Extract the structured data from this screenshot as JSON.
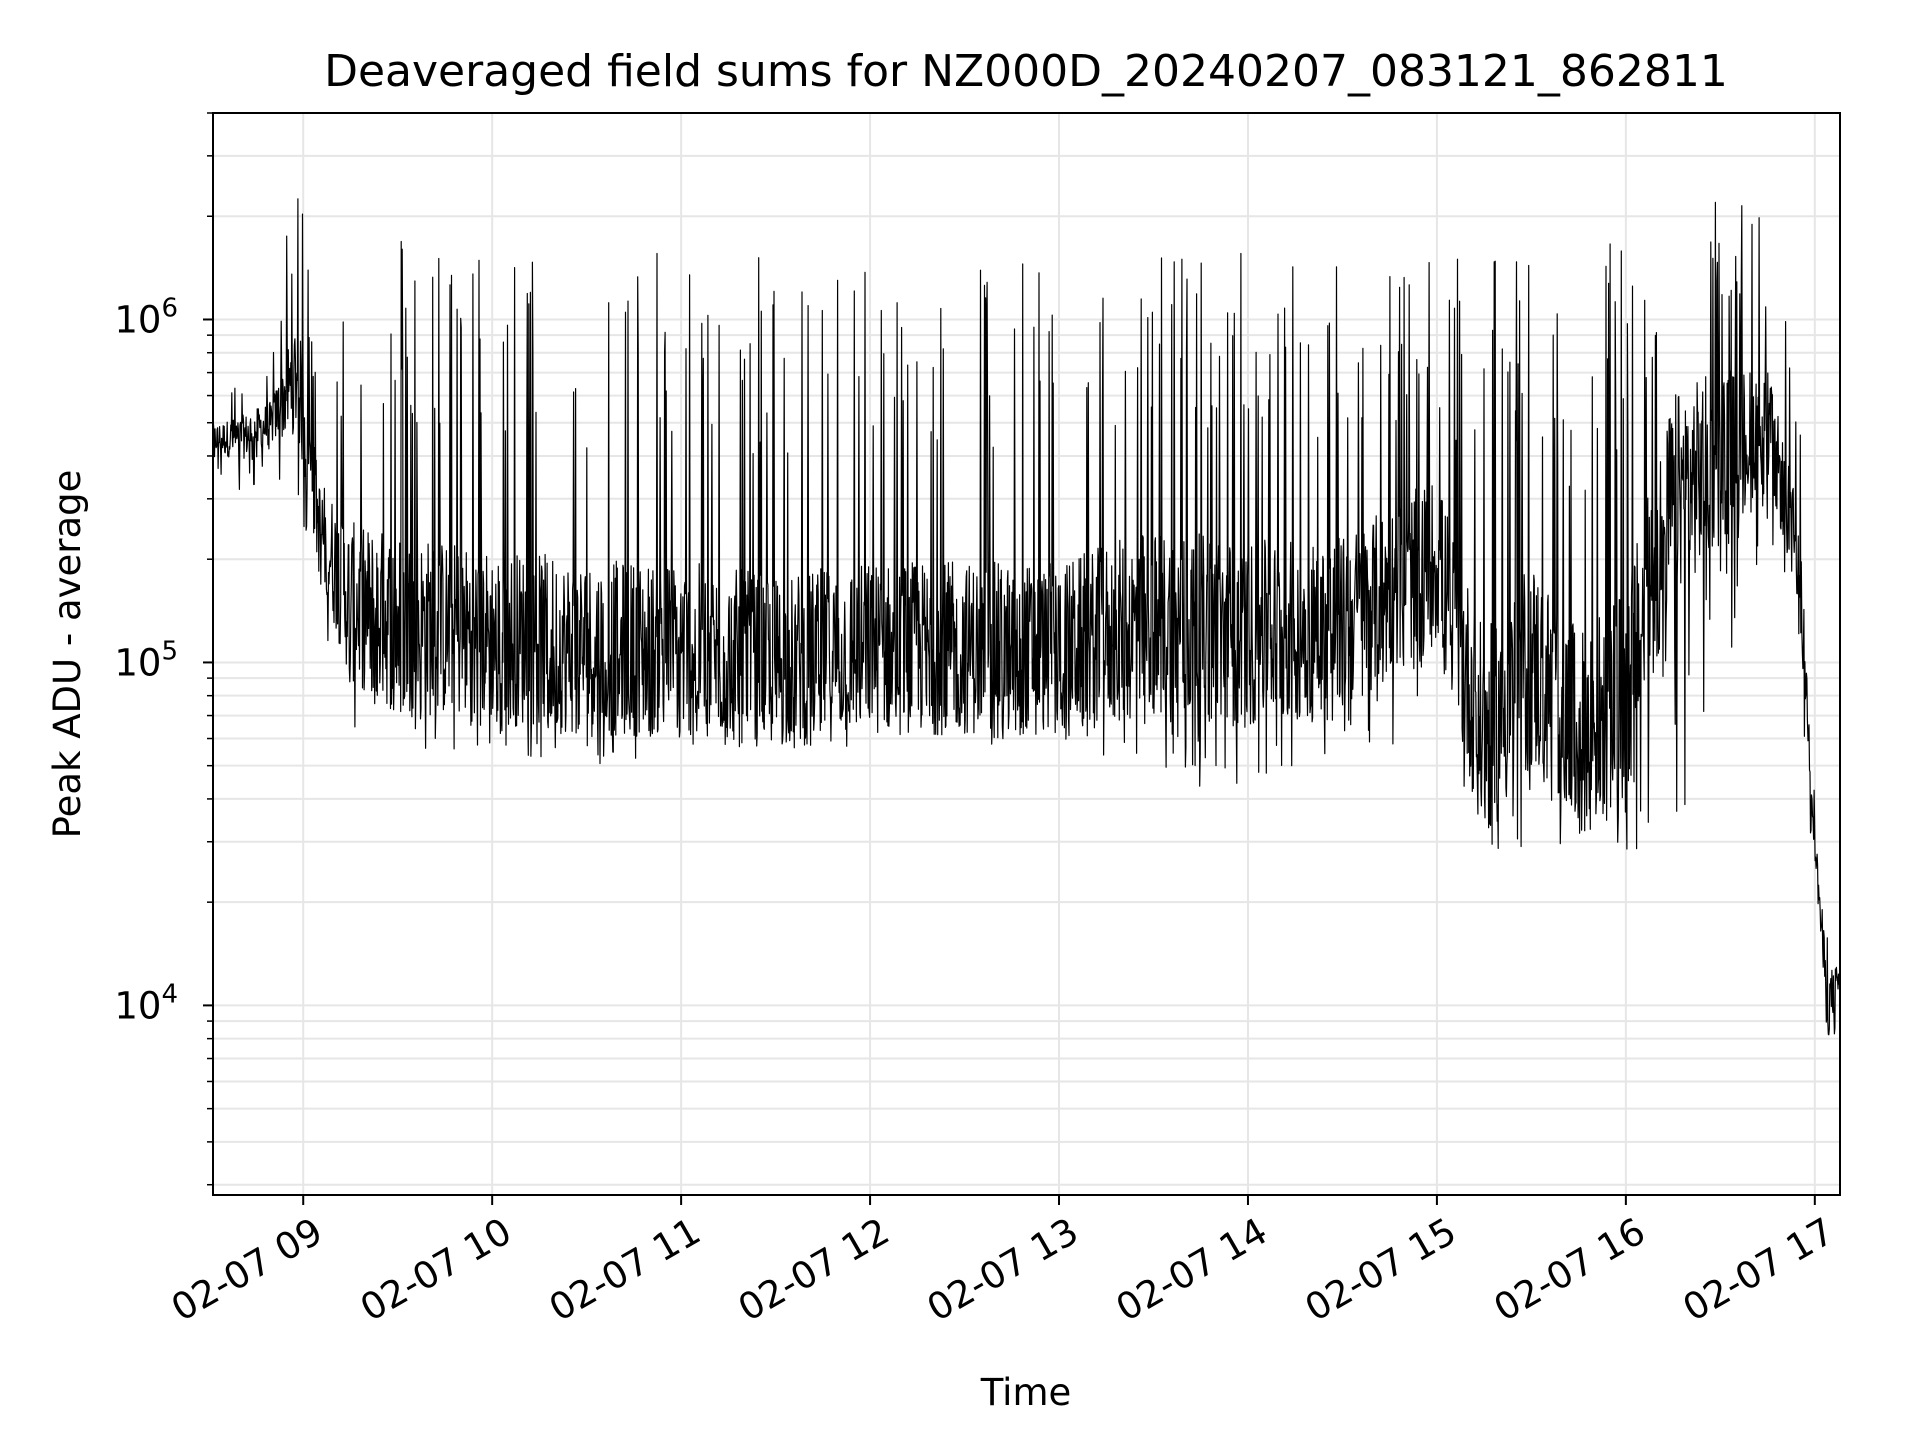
{
  "chart_data": {
    "type": "line",
    "title": "Deaveraged field sums for NZ000D_20240207_083121_862811",
    "xlabel": "Time",
    "ylabel": "Peak ADU - average",
    "y_scale": "log",
    "ylim": [
      2800,
      4000000
    ],
    "xlim": [
      "2024-02-07T08:31:21",
      "2024-02-07T17:08:00"
    ],
    "x_ticks": [
      "02-07 09",
      "02-07 10",
      "02-07 11",
      "02-07 12",
      "02-07 13",
      "02-07 14",
      "02-07 15",
      "02-07 16",
      "02-07 17"
    ],
    "x_tick_rotation": 30,
    "y_ticks": [
      {
        "value": 10000,
        "base": "10",
        "exp": "4"
      },
      {
        "value": 100000,
        "base": "10",
        "exp": "5"
      },
      {
        "value": 1000000,
        "base": "10",
        "exp": "6"
      }
    ],
    "grid": true,
    "legend": "none",
    "line_color": "#000000",
    "grid_color": "#e6e6e6",
    "series": [
      {
        "x": [
          "2024-02-07T08:31:21",
          "2024-02-07T08:40:00",
          "2024-02-07T08:50:00",
          "2024-02-07T08:58:00",
          "2024-02-07T09:05:00",
          "2024-02-07T09:15:00",
          "2024-02-07T09:30:00",
          "2024-02-07T10:00:00",
          "2024-02-07T10:30:00",
          "2024-02-07T11:00:00",
          "2024-02-07T11:30:00",
          "2024-02-07T12:00:00",
          "2024-02-07T12:30:00",
          "2024-02-07T13:00:00",
          "2024-02-07T13:30:00",
          "2024-02-07T14:00:00",
          "2024-02-07T14:30:00",
          "2024-02-07T15:00:00",
          "2024-02-07T15:15:00",
          "2024-02-07T15:30:00",
          "2024-02-07T15:45:00",
          "2024-02-07T16:00:00",
          "2024-02-07T16:15:00",
          "2024-02-07T16:30:00",
          "2024-02-07T16:45:00",
          "2024-02-07T16:55:00",
          "2024-02-07T17:00:00",
          "2024-02-07T17:04:00",
          "2024-02-07T17:08:00"
        ],
        "low": [
          350000,
          300000,
          350000,
          300000,
          150000,
          60000,
          55000,
          55000,
          50000,
          55000,
          55000,
          55000,
          55000,
          60000,
          45000,
          42000,
          55000,
          60000,
          28000,
          25000,
          28000,
          25000,
          30000,
          80000,
          250000,
          100000,
          20000,
          4000,
          9000
        ],
        "typ": [
          450000,
          450000,
          500000,
          700000,
          250000,
          150000,
          130000,
          120000,
          110000,
          110000,
          100000,
          110000,
          110000,
          110000,
          130000,
          120000,
          130000,
          200000,
          60000,
          100000,
          60000,
          80000,
          300000,
          400000,
          500000,
          200000,
          30000,
          10000,
          12000
        ],
        "high": [
          600000,
          700000,
          800000,
          3000000,
          1000000,
          1300000,
          1900000,
          1600000,
          1550000,
          1600000,
          1600000,
          1550000,
          1550000,
          1600000,
          1850000,
          1600000,
          1600000,
          1500000,
          1500000,
          1550000,
          1600000,
          1700000,
          1700000,
          2500000,
          2000000,
          600000,
          40000,
          16000,
          15000
        ]
      }
    ]
  }
}
